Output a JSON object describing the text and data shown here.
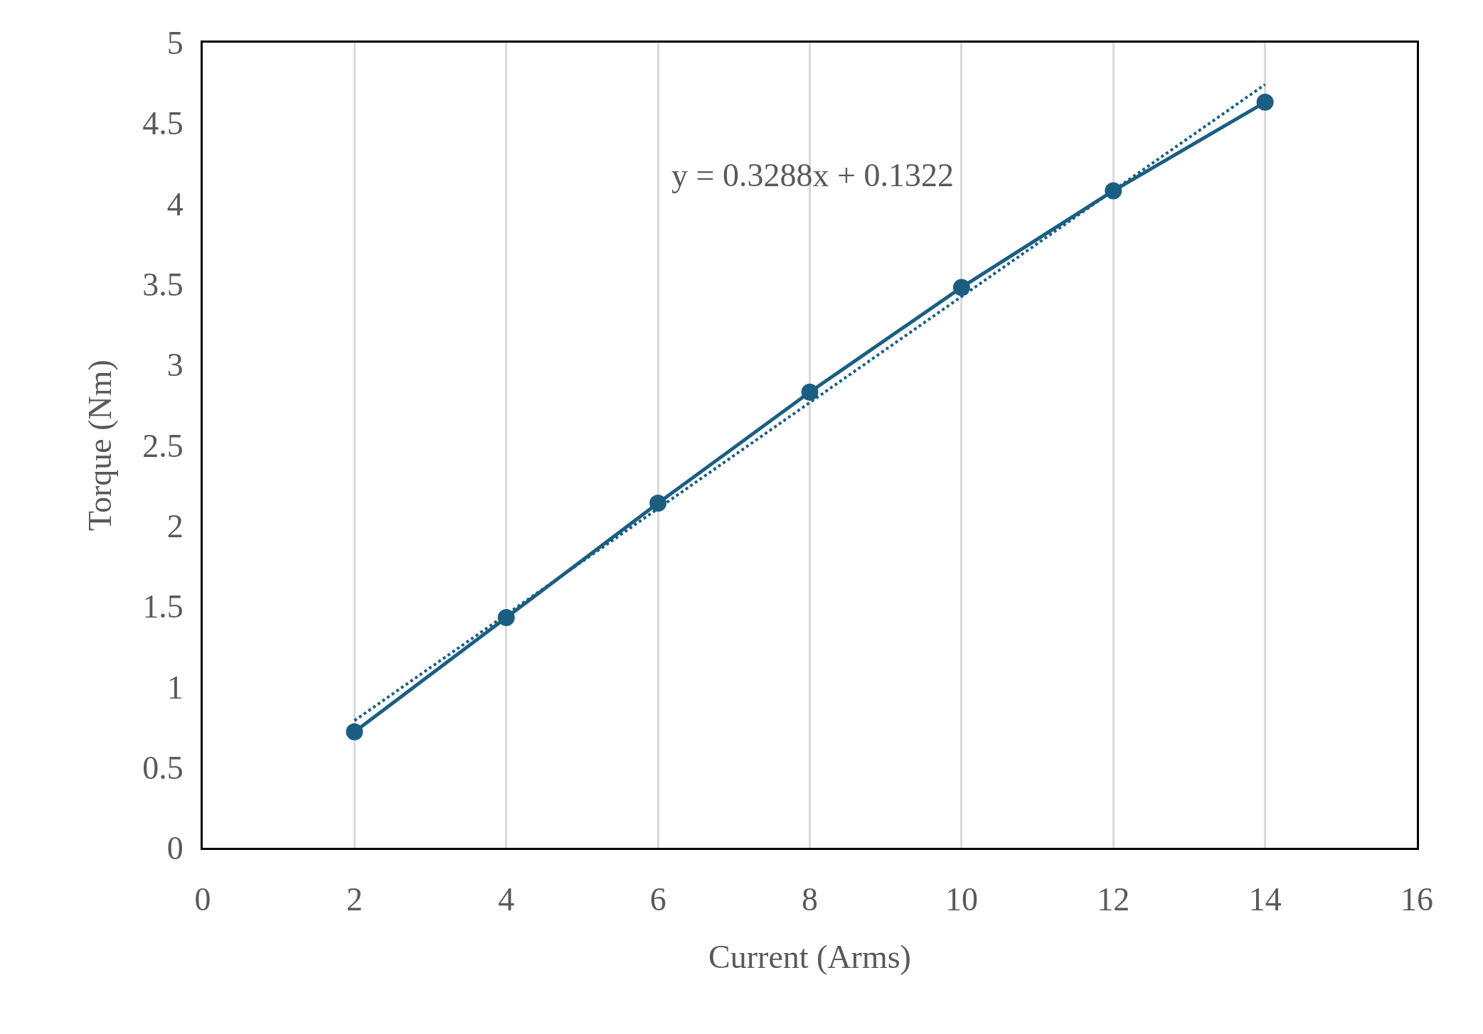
{
  "chart_data": {
    "type": "line",
    "xlabel": "Current (Arms)",
    "ylabel": "Torque (Nm)",
    "x": [
      2,
      4,
      6,
      8,
      10,
      12,
      14
    ],
    "series": [
      {
        "color": "#1b5e82",
        "values": [
          0.72,
          1.43,
          2.14,
          2.83,
          3.48,
          4.08,
          4.63
        ],
        "marker": "circle",
        "line_style": "solid"
      },
      {
        "type": "line",
        "color": "#1b5e82",
        "x": [
          2,
          14
        ],
        "values": [
          0.79,
          4.74
        ],
        "marker": "none",
        "line_style": "dotted"
      }
    ],
    "annotations": [
      "y = 0.3288x + 0.1322"
    ],
    "xlim": [
      0,
      16
    ],
    "xticks": [
      0,
      2,
      4,
      6,
      8,
      10,
      12,
      14,
      16
    ],
    "ylim": [
      0,
      5
    ],
    "yticks": [
      0,
      0.5,
      1,
      1.5,
      2,
      2.5,
      3,
      3.5,
      4,
      4.5,
      5
    ],
    "grid": "x"
  }
}
